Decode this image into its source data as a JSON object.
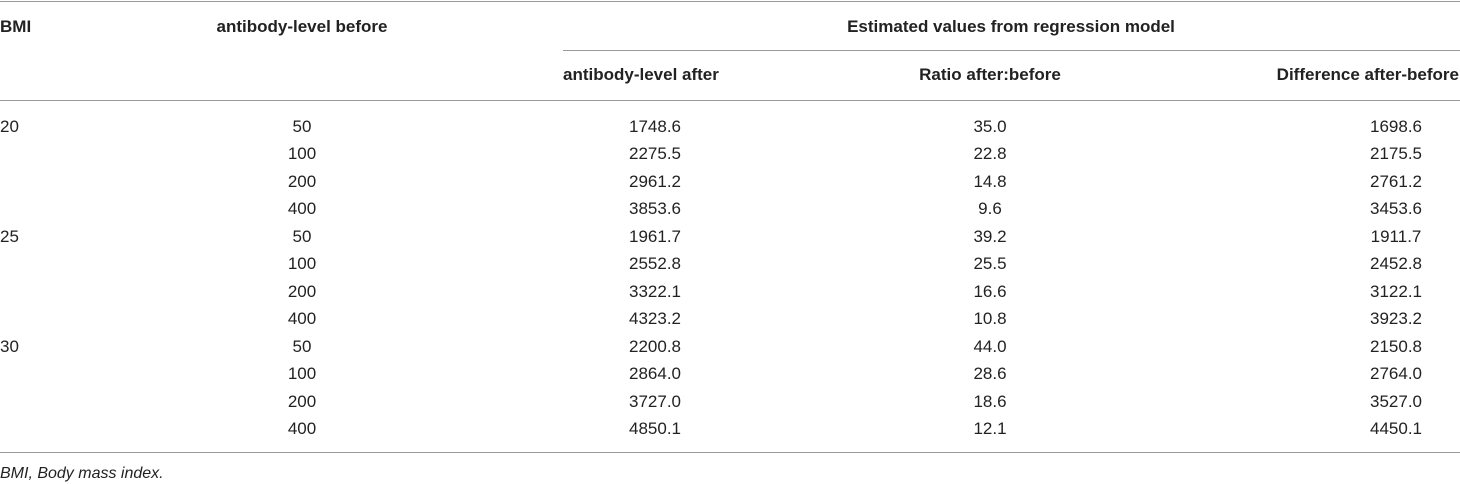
{
  "table": {
    "header": {
      "bmi": "BMI",
      "before": "antibody-level before",
      "group": "Estimated values from regression model",
      "after": "antibody-level after",
      "ratio": "Ratio after:before",
      "difference": "Difference after-before"
    },
    "groups": [
      {
        "bmi": "20",
        "rows": [
          [
            "50",
            "1748.6",
            "35.0",
            "1698.6"
          ],
          [
            "100",
            "2275.5",
            "22.8",
            "2175.5"
          ],
          [
            "200",
            "2961.2",
            "14.8",
            "2761.2"
          ],
          [
            "400",
            "3853.6",
            "9.6",
            "3453.6"
          ]
        ]
      },
      {
        "bmi": "25",
        "rows": [
          [
            "50",
            "1961.7",
            "39.2",
            "1911.7"
          ],
          [
            "100",
            "2552.8",
            "25.5",
            "2452.8"
          ],
          [
            "200",
            "3322.1",
            "16.6",
            "3122.1"
          ],
          [
            "400",
            "4323.2",
            "10.8",
            "3923.2"
          ]
        ]
      },
      {
        "bmi": "30",
        "rows": [
          [
            "50",
            "2200.8",
            "44.0",
            "2150.8"
          ],
          [
            "100",
            "2864.0",
            "28.6",
            "2764.0"
          ],
          [
            "200",
            "3727.0",
            "18.6",
            "3527.0"
          ],
          [
            "400",
            "4850.1",
            "12.1",
            "4450.1"
          ]
        ]
      }
    ]
  },
  "footnote": "BMI, Body mass index."
}
